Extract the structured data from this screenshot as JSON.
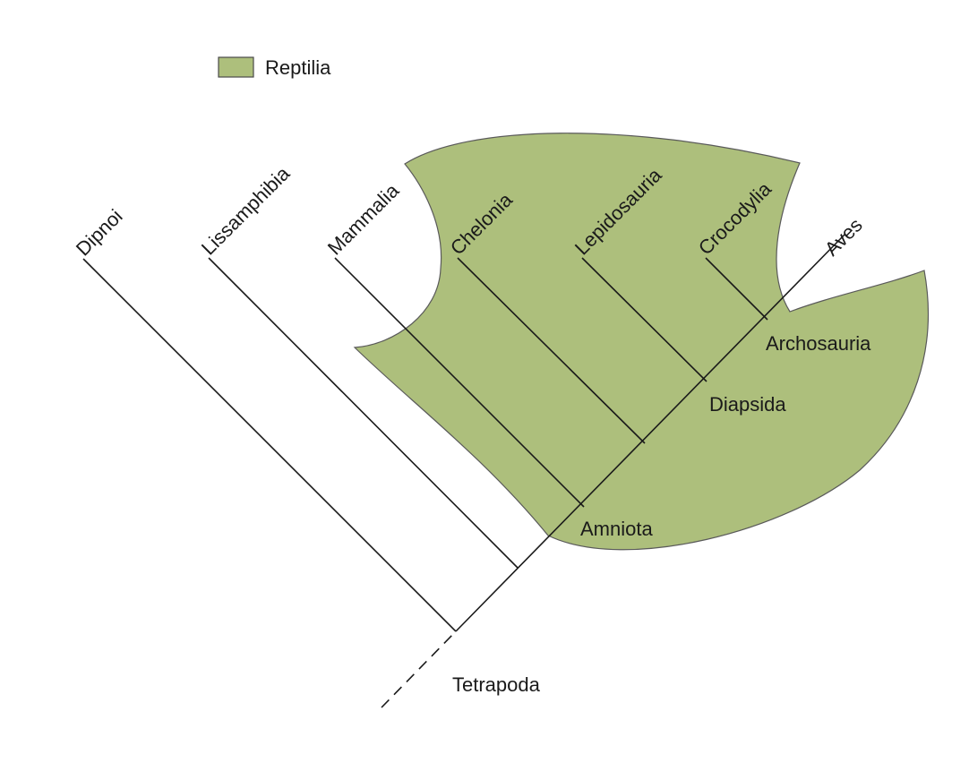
{
  "legend": {
    "label": "Reptilia",
    "swatch_color": "#adbf7c"
  },
  "group_fill_color": "#adbf7c",
  "group_stroke_color": "#5a5a5a",
  "taxa": [
    {
      "key": "dipnoi",
      "label": "Dipnoi"
    },
    {
      "key": "lissamphibia",
      "label": "Lissamphibia"
    },
    {
      "key": "mammalia",
      "label": "Mammalia"
    },
    {
      "key": "chelonia",
      "label": "Chelonia"
    },
    {
      "key": "lepidosauria",
      "label": "Lepidosauria"
    },
    {
      "key": "crocodylia",
      "label": "Crocodylia"
    },
    {
      "key": "aves",
      "label": "Aves"
    }
  ],
  "clades": [
    {
      "key": "tetrapoda",
      "label": "Tetrapoda"
    },
    {
      "key": "amniota",
      "label": "Amniota"
    },
    {
      "key": "diapsida",
      "label": "Diapsida"
    },
    {
      "key": "archosauria",
      "label": "Archosauria"
    }
  ]
}
